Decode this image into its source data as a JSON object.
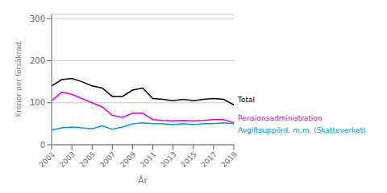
{
  "chart_data": {
    "type": "line",
    "xlabel": "År",
    "ylabel": "Kronor per försäkrad",
    "x": [
      2001,
      2002,
      2003,
      2004,
      2005,
      2006,
      2007,
      2008,
      2009,
      2010,
      2011,
      2012,
      2013,
      2014,
      2015,
      2016,
      2017,
      2018,
      2019
    ],
    "series": [
      {
        "name": "Total",
        "color": "#000000",
        "values": [
          140,
          155,
          158,
          150,
          140,
          135,
          115,
          115,
          130,
          135,
          110,
          108,
          105,
          108,
          105,
          108,
          110,
          108,
          95
        ]
      },
      {
        "name": "Pensionsadministration",
        "color": "#ee00cc",
        "values": [
          105,
          125,
          120,
          110,
          100,
          90,
          70,
          65,
          75,
          75,
          60,
          58,
          57,
          58,
          57,
          58,
          60,
          60,
          52
        ]
      },
      {
        "name": "Avgiftsuppörd, m.m. (Skatteverket)",
        "color": "#0099dd",
        "values": [
          35,
          40,
          42,
          40,
          38,
          45,
          37,
          42,
          50,
          52,
          50,
          50,
          48,
          50,
          48,
          50,
          50,
          52,
          50
        ]
      }
    ],
    "xlim": [
      2001,
      2019
    ],
    "xticks": [
      2001,
      2003,
      2005,
      2007,
      2009,
      2011,
      2013,
      2015,
      2017,
      2019
    ],
    "ylim": [
      0,
      310
    ],
    "yticks": [
      0,
      100,
      200,
      300
    ],
    "grid": true
  }
}
